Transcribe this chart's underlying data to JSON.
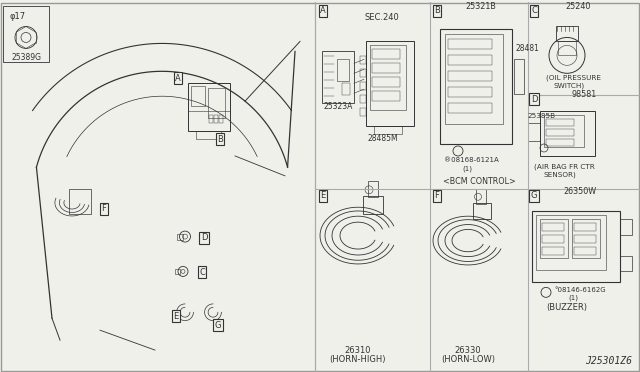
{
  "bg_color": "#f0f0eb",
  "line_color": "#333333",
  "grid_color": "#aaaaaa",
  "diagram_ref": "J25301Z6",
  "bolt_part": "25389G",
  "sections": {
    "A_note": "SEC.240",
    "A_parts": [
      "25323A",
      "28485M"
    ],
    "B_label": "<BCM CONTROL>",
    "B_parts": [
      "25321B",
      "28481",
      "08168-6121A",
      "(1)"
    ],
    "C_label": "(OIL PRESSURE\n SWITCH)",
    "C_parts": [
      "25240"
    ],
    "D_label": "(AIR BAG FR CTR\n  SENSOR)",
    "D_parts": [
      "98581",
      "25385B"
    ],
    "E_label": "(HORN-HIGH)",
    "E_parts": [
      "26310"
    ],
    "F_label": "(HORN-LOW)",
    "F_parts": [
      "26330"
    ],
    "G_label": "(BUZZER)",
    "G_parts": [
      "26350W",
      "08146-6162G",
      "(1)"
    ]
  }
}
